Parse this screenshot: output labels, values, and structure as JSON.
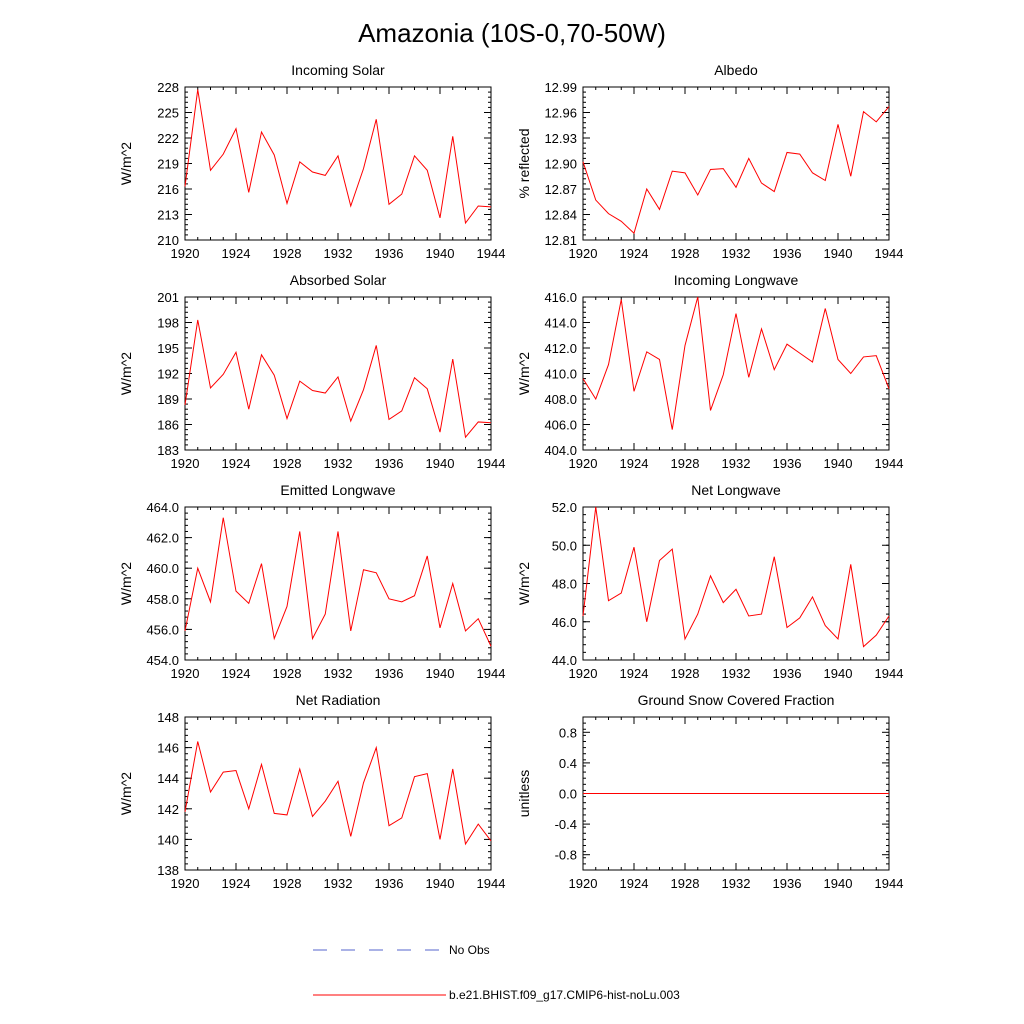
{
  "figure": {
    "title": "Amazonia (10S-0,70-50W)"
  },
  "legend": {
    "obs_label": "No Obs",
    "obs_color": "#5566cc",
    "model_label": "b.e21.BHIST.f09_g17.CMIP6-hist-noLu.003",
    "model_color": "#ff0000"
  },
  "chart_data": [
    {
      "type": "line",
      "title": "Incoming Solar",
      "ylabel": "W/m^2",
      "xlim": [
        1920,
        1944
      ],
      "ylim": [
        210,
        228
      ],
      "xticks": [
        1920,
        1924,
        1928,
        1932,
        1936,
        1940,
        1944
      ],
      "xtick_labels": [
        "1920",
        "1924",
        "1928",
        "1932",
        "1936",
        "1940",
        "1944"
      ],
      "yticks": [
        210,
        213,
        216,
        219,
        222,
        225,
        228
      ],
      "ytick_labels": [
        "210",
        "213",
        "216",
        "219",
        "222",
        "225",
        "228"
      ],
      "x": [
        1920,
        1921,
        1922,
        1923,
        1924,
        1925,
        1926,
        1927,
        1928,
        1929,
        1930,
        1931,
        1932,
        1933,
        1934,
        1935,
        1936,
        1937,
        1938,
        1939,
        1940,
        1941,
        1942,
        1943,
        1944
      ],
      "series": [
        {
          "name": "b.e21.BHIST.f09_g17.CMIP6-hist-noLu.003",
          "values": [
            216.3,
            227.7,
            218.2,
            220.1,
            223.1,
            215.6,
            222.7,
            220.0,
            214.3,
            219.2,
            218.0,
            217.6,
            219.9,
            214.0,
            218.4,
            224.2,
            214.2,
            215.4,
            219.9,
            218.2,
            212.6,
            222.2,
            212.0,
            214.0,
            213.9
          ]
        }
      ]
    },
    {
      "type": "line",
      "title": "Albedo",
      "ylabel": "% reflected",
      "xlim": [
        1920,
        1944
      ],
      "ylim": [
        12.81,
        12.99
      ],
      "xticks": [
        1920,
        1924,
        1928,
        1932,
        1936,
        1940,
        1944
      ],
      "xtick_labels": [
        "1920",
        "1924",
        "1928",
        "1932",
        "1936",
        "1940",
        "1944"
      ],
      "yticks": [
        12.81,
        12.84,
        12.87,
        12.9,
        12.93,
        12.96,
        12.99
      ],
      "ytick_labels": [
        "12.81",
        "12.84",
        "12.87",
        "12.90",
        "12.93",
        "12.96",
        "12.99"
      ],
      "x": [
        1920,
        1921,
        1922,
        1923,
        1924,
        1925,
        1926,
        1927,
        1928,
        1929,
        1930,
        1931,
        1932,
        1933,
        1934,
        1935,
        1936,
        1937,
        1938,
        1939,
        1940,
        1941,
        1942,
        1943,
        1944
      ],
      "series": [
        {
          "name": "b.e21.BHIST.f09_g17.CMIP6-hist-noLu.003",
          "values": [
            12.902,
            12.857,
            12.841,
            12.832,
            12.818,
            12.87,
            12.846,
            12.891,
            12.889,
            12.863,
            12.893,
            12.894,
            12.872,
            12.906,
            12.877,
            12.867,
            12.913,
            12.911,
            12.889,
            12.88,
            12.946,
            12.885,
            12.961,
            12.949,
            12.967
          ]
        }
      ]
    },
    {
      "type": "line",
      "title": "Absorbed Solar",
      "ylabel": "W/m^2",
      "xlim": [
        1920,
        1944
      ],
      "ylim": [
        183,
        201
      ],
      "xticks": [
        1920,
        1924,
        1928,
        1932,
        1936,
        1940,
        1944
      ],
      "xtick_labels": [
        "1920",
        "1924",
        "1928",
        "1932",
        "1936",
        "1940",
        "1944"
      ],
      "yticks": [
        183,
        186,
        189,
        192,
        195,
        198,
        201
      ],
      "ytick_labels": [
        "183",
        "186",
        "189",
        "192",
        "195",
        "198",
        "201"
      ],
      "x": [
        1920,
        1921,
        1922,
        1923,
        1924,
        1925,
        1926,
        1927,
        1928,
        1929,
        1930,
        1931,
        1932,
        1933,
        1934,
        1935,
        1936,
        1937,
        1938,
        1939,
        1940,
        1941,
        1942,
        1943,
        1944
      ],
      "series": [
        {
          "name": "b.e21.BHIST.f09_g17.CMIP6-hist-noLu.003",
          "values": [
            188.3,
            198.3,
            190.3,
            191.9,
            194.5,
            187.8,
            194.2,
            191.8,
            186.7,
            191.1,
            190.0,
            189.7,
            191.6,
            186.4,
            190.1,
            195.3,
            186.6,
            187.6,
            191.5,
            190.2,
            185.1,
            193.7,
            184.5,
            186.3,
            186.2
          ]
        }
      ]
    },
    {
      "type": "line",
      "title": "Incoming Longwave",
      "ylabel": "W/m^2",
      "xlim": [
        1920,
        1944
      ],
      "ylim": [
        404.0,
        416.0
      ],
      "xticks": [
        1920,
        1924,
        1928,
        1932,
        1936,
        1940,
        1944
      ],
      "xtick_labels": [
        "1920",
        "1924",
        "1928",
        "1932",
        "1936",
        "1940",
        "1944"
      ],
      "yticks": [
        404.0,
        406.0,
        408.0,
        410.0,
        412.0,
        414.0,
        416.0
      ],
      "ytick_labels": [
        "404.0",
        "406.0",
        "408.0",
        "410.0",
        "412.0",
        "414.0",
        "416.0"
      ],
      "x": [
        1920,
        1921,
        1922,
        1923,
        1924,
        1925,
        1926,
        1927,
        1928,
        1929,
        1930,
        1931,
        1932,
        1933,
        1934,
        1935,
        1936,
        1937,
        1938,
        1939,
        1940,
        1941,
        1942,
        1943,
        1944
      ],
      "series": [
        {
          "name": "b.e21.BHIST.f09_g17.CMIP6-hist-noLu.003",
          "values": [
            409.6,
            408.0,
            410.7,
            415.8,
            408.6,
            411.7,
            411.1,
            405.6,
            412.2,
            416.0,
            407.1,
            409.9,
            414.7,
            409.7,
            413.5,
            410.3,
            412.3,
            411.6,
            410.9,
            415.1,
            411.1,
            410.0,
            411.3,
            411.4,
            408.8
          ]
        }
      ]
    },
    {
      "type": "line",
      "title": "Emitted Longwave",
      "ylabel": "W/m^2",
      "xlim": [
        1920,
        1944
      ],
      "ylim": [
        454.0,
        464.0
      ],
      "xticks": [
        1920,
        1924,
        1928,
        1932,
        1936,
        1940,
        1944
      ],
      "xtick_labels": [
        "1920",
        "1924",
        "1928",
        "1932",
        "1936",
        "1940",
        "1944"
      ],
      "yticks": [
        454.0,
        456.0,
        458.0,
        460.0,
        462.0,
        464.0
      ],
      "ytick_labels": [
        "454.0",
        "456.0",
        "458.0",
        "460.0",
        "462.0",
        "464.0"
      ],
      "x": [
        1920,
        1921,
        1922,
        1923,
        1924,
        1925,
        1926,
        1927,
        1928,
        1929,
        1930,
        1931,
        1932,
        1933,
        1934,
        1935,
        1936,
        1937,
        1938,
        1939,
        1940,
        1941,
        1942,
        1943,
        1944
      ],
      "series": [
        {
          "name": "b.e21.BHIST.f09_g17.CMIP6-hist-noLu.003",
          "values": [
            455.9,
            460.0,
            457.8,
            463.3,
            458.5,
            457.7,
            460.3,
            455.4,
            457.5,
            462.4,
            455.4,
            457.0,
            462.4,
            455.9,
            459.9,
            459.7,
            458.0,
            457.8,
            458.2,
            460.8,
            456.1,
            459.0,
            455.9,
            456.7,
            454.9
          ]
        }
      ]
    },
    {
      "type": "line",
      "title": "Net Longwave",
      "ylabel": "W/m^2",
      "xlim": [
        1920,
        1944
      ],
      "ylim": [
        44.0,
        52.0
      ],
      "xticks": [
        1920,
        1924,
        1928,
        1932,
        1936,
        1940,
        1944
      ],
      "xtick_labels": [
        "1920",
        "1924",
        "1928",
        "1932",
        "1936",
        "1940",
        "1944"
      ],
      "yticks": [
        44.0,
        46.0,
        48.0,
        50.0,
        52.0
      ],
      "ytick_labels": [
        "44.0",
        "46.0",
        "48.0",
        "50.0",
        "52.0"
      ],
      "x": [
        1920,
        1921,
        1922,
        1923,
        1924,
        1925,
        1926,
        1927,
        1928,
        1929,
        1930,
        1931,
        1932,
        1933,
        1934,
        1935,
        1936,
        1937,
        1938,
        1939,
        1940,
        1941,
        1942,
        1943,
        1944
      ],
      "series": [
        {
          "name": "b.e21.BHIST.f09_g17.CMIP6-hist-noLu.003",
          "values": [
            46.3,
            52.0,
            47.1,
            47.5,
            49.9,
            46.0,
            49.2,
            49.8,
            45.1,
            46.4,
            48.4,
            47.0,
            47.7,
            46.3,
            46.4,
            49.4,
            45.7,
            46.2,
            47.3,
            45.8,
            45.1,
            49.0,
            44.7,
            45.3,
            46.3
          ]
        }
      ]
    },
    {
      "type": "line",
      "title": "Net Radiation",
      "ylabel": "W/m^2",
      "xlim": [
        1920,
        1944
      ],
      "ylim": [
        138,
        148
      ],
      "xticks": [
        1920,
        1924,
        1928,
        1932,
        1936,
        1940,
        1944
      ],
      "xtick_labels": [
        "1920",
        "1924",
        "1928",
        "1932",
        "1936",
        "1940",
        "1944"
      ],
      "yticks": [
        138,
        140,
        142,
        144,
        146,
        148
      ],
      "ytick_labels": [
        "138",
        "140",
        "142",
        "144",
        "146",
        "148"
      ],
      "x": [
        1920,
        1921,
        1922,
        1923,
        1924,
        1925,
        1926,
        1927,
        1928,
        1929,
        1930,
        1931,
        1932,
        1933,
        1934,
        1935,
        1936,
        1937,
        1938,
        1939,
        1940,
        1941,
        1942,
        1943,
        1944
      ],
      "series": [
        {
          "name": "b.e21.BHIST.f09_g17.CMIP6-hist-noLu.003",
          "values": [
            141.8,
            146.4,
            143.1,
            144.4,
            144.5,
            142.0,
            144.9,
            141.7,
            141.6,
            144.6,
            141.5,
            142.5,
            143.8,
            140.2,
            143.7,
            146.0,
            140.9,
            141.4,
            144.1,
            144.3,
            140.0,
            144.6,
            139.7,
            141.0,
            139.9
          ]
        }
      ]
    },
    {
      "type": "line",
      "title": "Ground Snow Covered Fraction",
      "ylabel": "unitless",
      "xlim": [
        1920,
        1944
      ],
      "ylim": [
        -1.0,
        1.0
      ],
      "xticks": [
        1920,
        1924,
        1928,
        1932,
        1936,
        1940,
        1944
      ],
      "xtick_labels": [
        "1920",
        "1924",
        "1928",
        "1932",
        "1936",
        "1940",
        "1944"
      ],
      "yticks": [
        -0.8,
        -0.4,
        0.0,
        0.4,
        0.8
      ],
      "ytick_labels": [
        "-0.8",
        "-0.4",
        "0.0",
        "0.4",
        "0.8"
      ],
      "x": [
        1920,
        1921,
        1922,
        1923,
        1924,
        1925,
        1926,
        1927,
        1928,
        1929,
        1930,
        1931,
        1932,
        1933,
        1934,
        1935,
        1936,
        1937,
        1938,
        1939,
        1940,
        1941,
        1942,
        1943,
        1944
      ],
      "series": [
        {
          "name": "b.e21.BHIST.f09_g17.CMIP6-hist-noLu.003",
          "values": [
            0,
            0,
            0,
            0,
            0,
            0,
            0,
            0,
            0,
            0,
            0,
            0,
            0,
            0,
            0,
            0,
            0,
            0,
            0,
            0,
            0,
            0,
            0,
            0,
            0
          ]
        }
      ]
    }
  ]
}
